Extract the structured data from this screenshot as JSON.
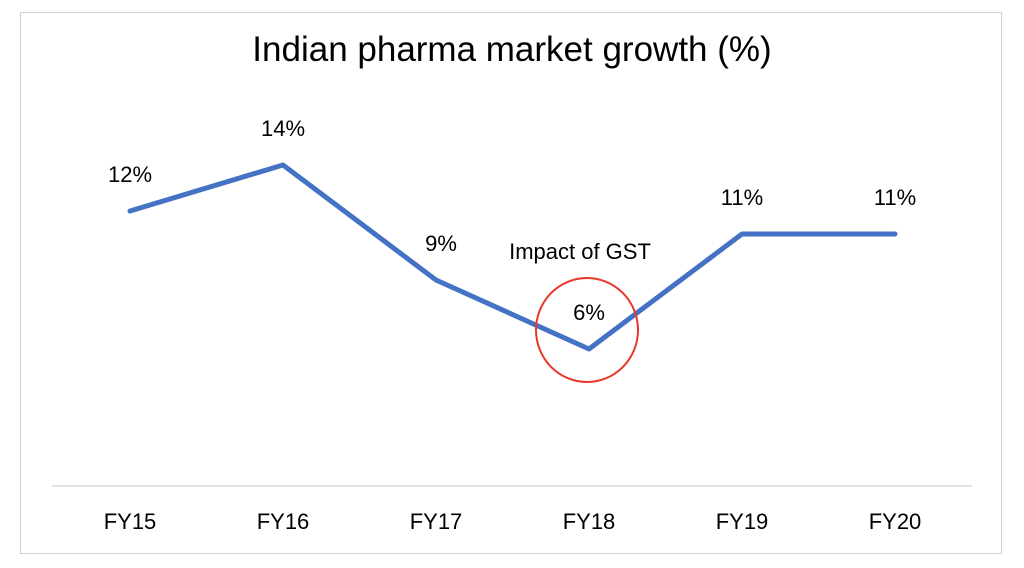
{
  "chart_data": {
    "type": "line",
    "title": "Indian pharma market growth (%)",
    "xlabel": "",
    "ylabel": "",
    "categories": [
      "FY15",
      "FY16",
      "FY17",
      "FY18",
      "FY19",
      "FY20"
    ],
    "series": [
      {
        "values": [
          12,
          14,
          9,
          6,
          11,
          11
        ],
        "data_labels": [
          "12%",
          "14%",
          "9%",
          "6%",
          "11%",
          "11%"
        ],
        "color": "#4472C4"
      }
    ],
    "ylim": [
      0,
      15
    ],
    "grid": false,
    "annotation": {
      "text": "Impact of GST",
      "category": "FY18",
      "highlight_color": "#E8372A"
    }
  }
}
